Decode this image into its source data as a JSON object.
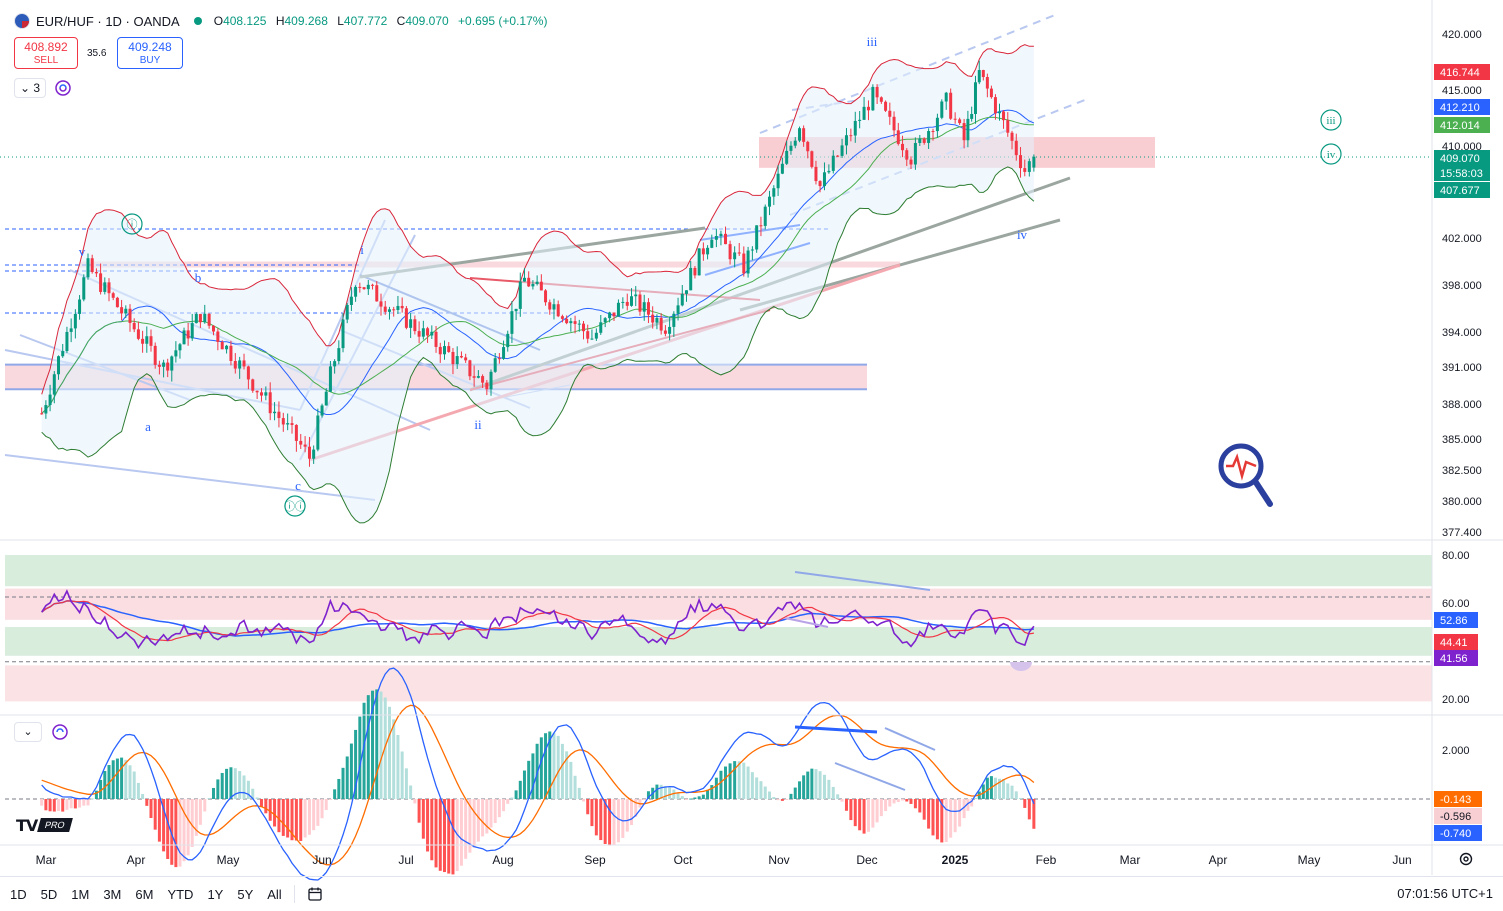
{
  "header": {
    "symbol": "EUR/HUF · 1D · OANDA",
    "open_label": "O",
    "open": "408.125",
    "high_label": "H",
    "high": "409.268",
    "low_label": "L",
    "low": "407.772",
    "close_label": "C",
    "close": "409.070",
    "change": "+0.695 (+0.17%)"
  },
  "trade": {
    "sell_price": "408.892",
    "sell_label": "SELL",
    "spread": "35.6",
    "buy_price": "409.248",
    "buy_label": "BUY"
  },
  "indicator_count": "3",
  "bottom_toolbar": {
    "timeframes": [
      "1D",
      "5D",
      "1M",
      "3M",
      "6M",
      "YTD",
      "1Y",
      "5Y",
      "All"
    ],
    "clock": "07:01:56 UTC+1"
  },
  "colors": {
    "up": "#089981",
    "down": "#f23645",
    "blue": "#2962ff",
    "rsi": "#7e22ce",
    "macd": "#2962ff",
    "signal": "#ff6d00",
    "bb": "#d9263a",
    "ma": "#4caf50"
  },
  "chart_data": [
    {
      "type": "candlestick",
      "pane": "price",
      "symbol": "EUR/HUF",
      "y_ticks": [
        "420.000",
        "415.000",
        "410.000",
        "402.000",
        "398.000",
        "394.000",
        "391.000",
        "388.000",
        "385.000",
        "382.500",
        "380.000",
        "377.400"
      ],
      "x_ticks": [
        "Mar",
        "Apr",
        "May",
        "Jun",
        "Jul",
        "Aug",
        "Sep",
        "Oct",
        "Nov",
        "Dec",
        "2025",
        "Feb",
        "Mar",
        "Apr",
        "May",
        "Jun"
      ],
      "price_labels": [
        {
          "value": "416.744",
          "color": "#f23645"
        },
        {
          "value": "412.210",
          "color": "#2962ff"
        },
        {
          "value": "412.014",
          "color": "#4caf50"
        },
        {
          "value": "409.070",
          "color": "#089981"
        },
        {
          "value": "15:58:03",
          "color": "#089981"
        },
        {
          "value": "407.677",
          "color": "#089981"
        }
      ],
      "wave_labels": [
        "v",
        "b",
        "a",
        "c",
        "ⓘ",
        "ⓘⓘ",
        "i",
        "ii",
        "iii",
        "iv",
        "(iii)",
        "(iv)"
      ],
      "series_anchors": [
        {
          "date": "Feb 26",
          "price": 387.2
        },
        {
          "date": "Mar 15",
          "price": 399.5
        },
        {
          "date": "Apr 10",
          "price": 391.0
        },
        {
          "date": "Apr 22",
          "price": 395.5
        },
        {
          "date": "May 27",
          "price": 383.5
        },
        {
          "date": "Jun 13",
          "price": 398.5
        },
        {
          "date": "Jul 26",
          "price": 389.5
        },
        {
          "date": "Aug 08",
          "price": 398.5
        },
        {
          "date": "Aug 30",
          "price": 393.5
        },
        {
          "date": "Sep 12",
          "price": 397.0
        },
        {
          "date": "Sep 25",
          "price": 394.5
        },
        {
          "date": "Oct 10",
          "price": 402.5
        },
        {
          "date": "Oct 20",
          "price": 399.5
        },
        {
          "date": "Nov 08",
          "price": 412.0
        },
        {
          "date": "Nov 15",
          "price": 406.5
        },
        {
          "date": "Dec 03",
          "price": 414.5
        },
        {
          "date": "Dec 16",
          "price": 409.0
        },
        {
          "date": "Dec 28",
          "price": 414.0
        },
        {
          "date": "Jan 04",
          "price": 410.5
        },
        {
          "date": "Jan 09",
          "price": 416.5
        },
        {
          "date": "Jan 17",
          "price": 412.0
        },
        {
          "date": "Jan 24",
          "price": 407.9
        },
        {
          "date": "Jan 27",
          "price": 409.07
        }
      ]
    },
    {
      "type": "line",
      "pane": "rsi",
      "y_ticks": [
        "80.00",
        "60.00",
        "20.00"
      ],
      "labels": [
        {
          "value": "52.86",
          "color": "#2962ff"
        },
        {
          "value": "44.41",
          "color": "#f23645"
        },
        {
          "value": "41.56",
          "color": "#7e22ce"
        }
      ]
    },
    {
      "type": "line",
      "pane": "macd",
      "y_ticks": [
        "2.000"
      ],
      "labels": [
        {
          "value": "-0.143",
          "color": "#ff6d00"
        },
        {
          "value": "-0.596",
          "color": "#f8d0d4"
        },
        {
          "value": "-0.740",
          "color": "#2962ff"
        }
      ]
    }
  ]
}
